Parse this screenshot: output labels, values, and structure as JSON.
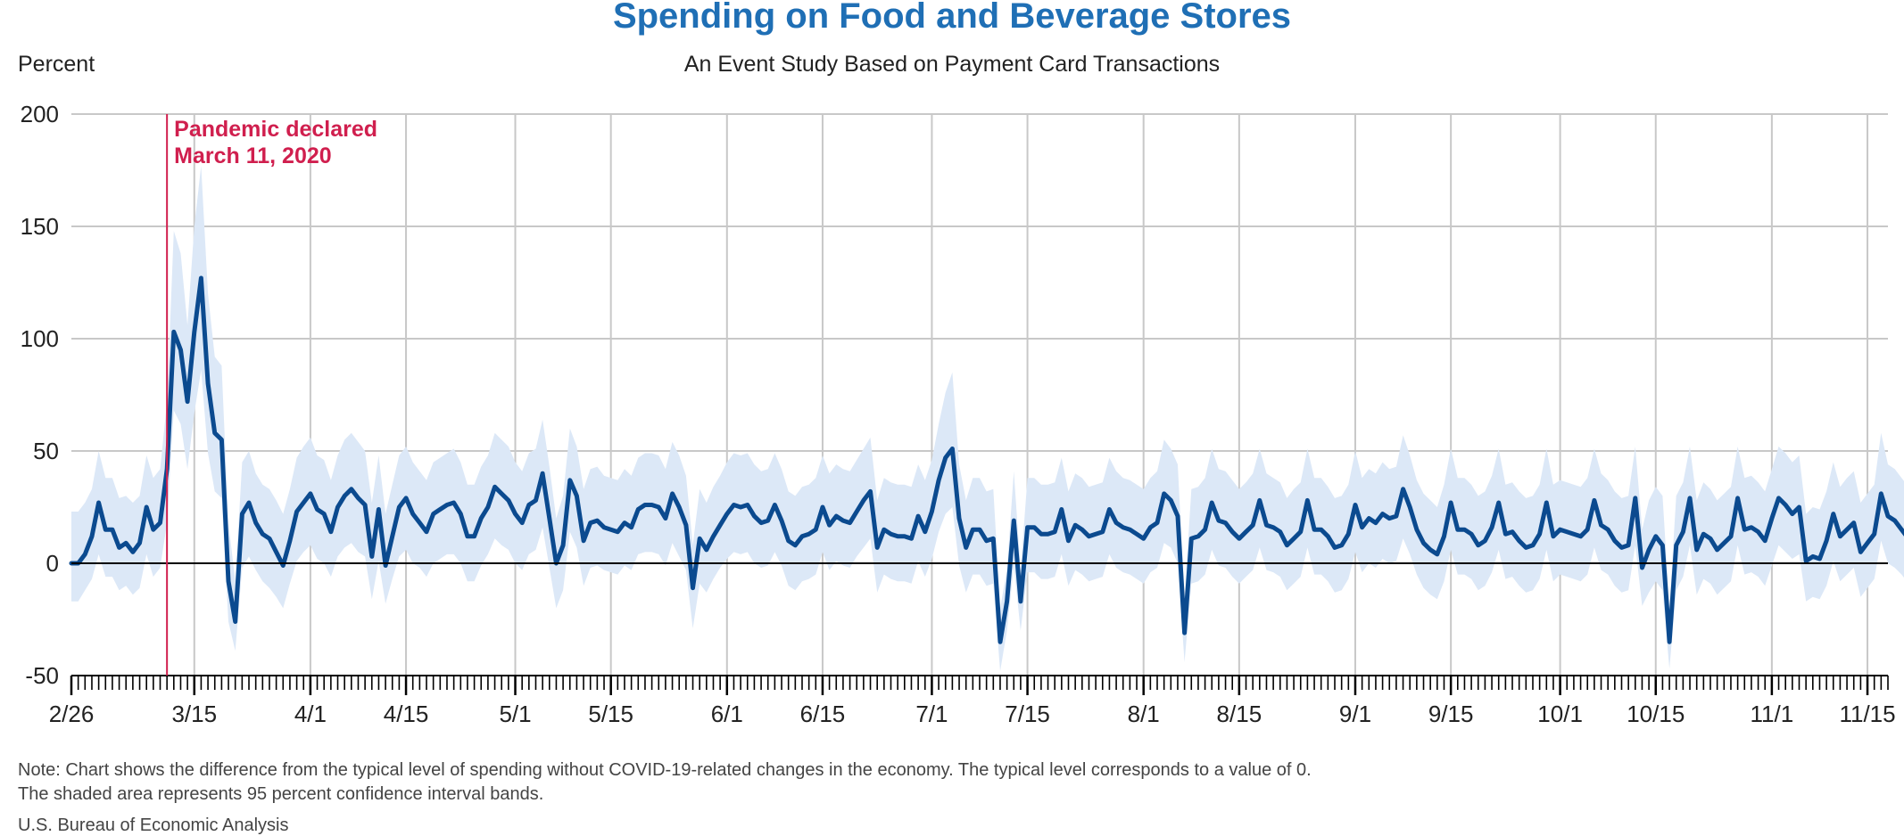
{
  "title": "Spending on Food and Beverage Stores",
  "subtitle": "An Event Study Based on Payment Card Transactions",
  "y_unit_label": "Percent",
  "note_line1": "Note: Chart shows the difference from the typical level of spending without COVID-19-related changes in the economy. The typical level corresponds to a value of 0.",
  "note_line2": "The shaded area represents 95 percent confidence interval bands.",
  "source": "U.S. Bureau of Economic Analysis",
  "colors": {
    "line": "#0b4a8f",
    "band": "#dce8f7",
    "event": "#d01f4e",
    "title": "#1f6fb5",
    "grid": "#c8c8c8",
    "zero": "#000000"
  },
  "chart_data": {
    "type": "line",
    "title": "Spending on Food and Beverage Stores",
    "subtitle": "An Event Study Based on Payment Card Transactions",
    "ylabel": "Percent",
    "xlabel": "",
    "ylim": [
      -50,
      200
    ],
    "yticks": [
      -50,
      0,
      50,
      100,
      150,
      200
    ],
    "x_start": "2020-02-26",
    "x_end": "2020-11-18",
    "x_tick_labels": [
      "2/26",
      "3/15",
      "4/1",
      "4/15",
      "5/1",
      "5/15",
      "6/1",
      "6/15",
      "7/1",
      "7/15",
      "8/1",
      "8/15",
      "9/1",
      "9/15",
      "10/1",
      "10/15",
      "11/1",
      "11/15"
    ],
    "x_tick_dates": [
      "2020-02-26",
      "2020-03-15",
      "2020-04-01",
      "2020-04-15",
      "2020-05-01",
      "2020-05-15",
      "2020-06-01",
      "2020-06-15",
      "2020-07-01",
      "2020-07-15",
      "2020-08-01",
      "2020-08-15",
      "2020-09-01",
      "2020-09-15",
      "2020-10-01",
      "2020-10-15",
      "2020-11-01",
      "2020-11-15"
    ],
    "grid": true,
    "annotation": {
      "date": "2020-03-11",
      "label_line1": "Pandemic declared",
      "label_line2": "March 11, 2020"
    },
    "series": [
      {
        "values": [
          0,
          0,
          4,
          12,
          27,
          15,
          15,
          7,
          9,
          5,
          9,
          25,
          15,
          18,
          42,
          103,
          95,
          72,
          103,
          127,
          80,
          58,
          55,
          -8,
          -26,
          22,
          27,
          18,
          13,
          11,
          5,
          -1,
          10,
          23,
          27,
          31,
          24,
          22,
          14,
          25,
          30,
          33,
          29,
          26,
          3,
          24,
          -1,
          12,
          25,
          29,
          22,
          18,
          14,
          22,
          24,
          26,
          27,
          22,
          12,
          12,
          20,
          25,
          34,
          31,
          28,
          22,
          18,
          26,
          28,
          40,
          20,
          0,
          8,
          37,
          30,
          10,
          18,
          19,
          16,
          15,
          14,
          18,
          16,
          24,
          26,
          26,
          25,
          20,
          31,
          25,
          17,
          -11,
          11,
          6,
          12,
          17,
          22,
          26,
          25,
          26,
          21,
          18,
          19,
          26,
          19,
          10,
          8,
          12,
          13,
          15,
          25,
          17,
          21,
          19,
          18,
          23,
          28,
          32,
          7,
          15,
          13,
          12,
          12,
          11,
          21,
          14,
          23,
          37,
          47,
          51,
          20,
          7,
          15,
          15,
          10,
          11,
          -35,
          -17,
          19,
          -17,
          16,
          16,
          13,
          13,
          14,
          24,
          10,
          17,
          15,
          12,
          13,
          14,
          24,
          18,
          16,
          15,
          13,
          11,
          16,
          18,
          31,
          28,
          21,
          -31,
          11,
          12,
          15,
          27,
          19,
          18,
          14,
          11,
          14,
          17,
          28,
          17,
          16,
          14,
          8,
          11,
          14,
          28,
          15,
          15,
          12,
          7,
          8,
          13,
          26,
          16,
          20,
          18,
          22,
          20,
          21,
          33,
          25,
          15,
          9,
          6,
          4,
          12,
          27,
          15,
          15,
          13,
          8,
          10,
          16,
          27,
          13,
          14,
          10,
          7,
          8,
          13,
          27,
          12,
          15,
          14,
          13,
          12,
          15,
          28,
          17,
          15,
          10,
          7,
          8,
          29,
          -2,
          6,
          12,
          8,
          -35,
          8,
          14,
          29,
          6,
          13,
          11,
          6,
          9,
          12,
          29,
          15,
          16,
          14,
          10,
          20,
          29,
          26,
          22,
          25,
          1,
          3,
          2,
          10,
          22,
          12,
          15,
          18,
          5,
          9,
          13,
          31,
          21,
          19,
          15,
          11
        ],
        "lower": [
          -17,
          -17,
          -12,
          -7,
          4,
          -6,
          -6,
          -12,
          -10,
          -14,
          -11,
          4,
          -6,
          -2,
          18,
          68,
          62,
          42,
          67,
          86,
          49,
          32,
          29,
          -26,
          -39,
          -2,
          3,
          -3,
          -8,
          -11,
          -15,
          -20,
          -9,
          1,
          5,
          8,
          2,
          0,
          -6,
          3,
          7,
          9,
          5,
          3,
          -16,
          1,
          -18,
          -7,
          3,
          6,
          0,
          -2,
          -6,
          0,
          2,
          4,
          4,
          0,
          -8,
          -8,
          -1,
          4,
          11,
          8,
          6,
          0,
          -3,
          4,
          6,
          16,
          -2,
          -20,
          -12,
          14,
          7,
          -10,
          -2,
          -1,
          -3,
          -4,
          -5,
          -1,
          -3,
          4,
          5,
          5,
          4,
          -1,
          9,
          3,
          -3,
          -29,
          -9,
          -13,
          -7,
          -2,
          2,
          5,
          4,
          5,
          0,
          -2,
          -1,
          5,
          -1,
          -10,
          -12,
          -8,
          -7,
          -5,
          5,
          -3,
          1,
          -1,
          -2,
          3,
          7,
          11,
          -13,
          -5,
          -7,
          -8,
          -8,
          -9,
          1,
          -6,
          2,
          14,
          22,
          25,
          -1,
          -13,
          -5,
          -5,
          -10,
          -9,
          -48,
          -30,
          -1,
          -30,
          -4,
          -4,
          -7,
          -7,
          -6,
          4,
          -10,
          -3,
          -5,
          -8,
          -7,
          -6,
          4,
          -2,
          -4,
          -5,
          -7,
          -9,
          -4,
          -2,
          9,
          7,
          0,
          -44,
          -9,
          -8,
          -5,
          6,
          -1,
          -2,
          -6,
          -9,
          -6,
          -3,
          7,
          -3,
          -4,
          -6,
          -12,
          -9,
          -6,
          7,
          -5,
          -5,
          -8,
          -13,
          -12,
          -7,
          5,
          -4,
          0,
          -2,
          2,
          0,
          1,
          11,
          4,
          -5,
          -11,
          -14,
          -16,
          -8,
          6,
          -5,
          -5,
          -7,
          -12,
          -10,
          -4,
          6,
          -7,
          -6,
          -10,
          -13,
          -12,
          -7,
          6,
          -8,
          -5,
          -6,
          -7,
          -8,
          -5,
          7,
          -3,
          -5,
          -10,
          -13,
          -12,
          8,
          -19,
          -13,
          -8,
          -12,
          -47,
          -12,
          -6,
          8,
          -14,
          -7,
          -9,
          -14,
          -11,
          -8,
          8,
          -5,
          -4,
          -6,
          -10,
          -1,
          8,
          5,
          2,
          4,
          -17,
          -15,
          -16,
          -10,
          1,
          -8,
          -5,
          -2,
          -15,
          -11,
          -7,
          10,
          0,
          -2,
          -5,
          -9
        ],
        "upper": [
          23,
          23,
          27,
          33,
          50,
          38,
          38,
          29,
          30,
          27,
          30,
          48,
          38,
          42,
          72,
          148,
          138,
          106,
          150,
          177,
          120,
          92,
          88,
          18,
          -8,
          45,
          50,
          40,
          35,
          33,
          28,
          22,
          33,
          47,
          52,
          56,
          48,
          46,
          37,
          48,
          55,
          58,
          54,
          50,
          27,
          48,
          22,
          35,
          48,
          52,
          45,
          41,
          37,
          45,
          47,
          49,
          51,
          45,
          35,
          35,
          43,
          48,
          58,
          55,
          52,
          45,
          41,
          49,
          51,
          64,
          43,
          20,
          30,
          60,
          52,
          33,
          42,
          43,
          39,
          38,
          37,
          42,
          39,
          47,
          49,
          49,
          48,
          42,
          54,
          48,
          39,
          8,
          33,
          27,
          34,
          39,
          45,
          49,
          48,
          49,
          44,
          41,
          42,
          49,
          42,
          32,
          30,
          34,
          35,
          38,
          48,
          40,
          44,
          42,
          41,
          46,
          51,
          56,
          28,
          38,
          36,
          35,
          35,
          34,
          44,
          37,
          46,
          62,
          76,
          85,
          44,
          28,
          38,
          38,
          32,
          33,
          -20,
          -3,
          41,
          -3,
          38,
          38,
          35,
          35,
          36,
          47,
          32,
          40,
          38,
          34,
          35,
          36,
          47,
          41,
          38,
          37,
          35,
          33,
          38,
          41,
          55,
          51,
          44,
          -16,
          33,
          34,
          38,
          51,
          42,
          41,
          37,
          33,
          36,
          40,
          51,
          40,
          38,
          36,
          29,
          33,
          36,
          51,
          38,
          38,
          34,
          29,
          30,
          35,
          50,
          38,
          42,
          40,
          45,
          42,
          43,
          57,
          48,
          37,
          31,
          28,
          25,
          35,
          51,
          38,
          38,
          35,
          30,
          32,
          39,
          51,
          35,
          36,
          32,
          29,
          30,
          35,
          51,
          35,
          37,
          36,
          35,
          34,
          38,
          51,
          40,
          37,
          32,
          29,
          30,
          52,
          15,
          28,
          34,
          30,
          -20,
          30,
          36,
          52,
          28,
          36,
          33,
          28,
          31,
          34,
          52,
          38,
          39,
          36,
          32,
          42,
          52,
          49,
          45,
          48,
          22,
          25,
          24,
          32,
          45,
          34,
          38,
          41,
          27,
          31,
          35,
          58,
          44,
          42,
          38,
          34
        ]
      }
    ]
  }
}
